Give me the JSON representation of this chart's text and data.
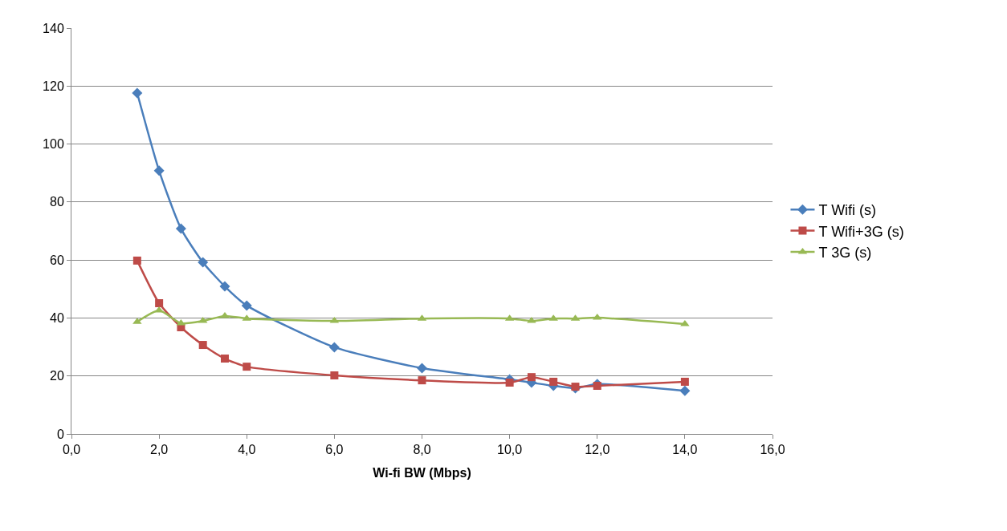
{
  "chart_data": {
    "type": "line",
    "xlabel": "Wi-fi BW (Mbps)",
    "x": [
      1.5,
      2,
      2.5,
      3,
      3.5,
      4,
      6,
      8,
      10,
      10.5,
      11,
      11.5,
      12,
      14
    ],
    "series": [
      {
        "name": "T Wifi (s)",
        "color": "#4a7ebb",
        "marker": "diamond",
        "values": [
          117.6,
          90.8,
          70.8,
          59.2,
          50.9,
          44.3,
          29.9,
          22.7,
          18.8,
          17.7,
          16.6,
          15.8,
          17.2,
          14.9
        ]
      },
      {
        "name": "T Wifi+3G (s)",
        "color": "#be4b48",
        "marker": "square",
        "values": [
          59.8,
          45.1,
          36.8,
          30.7,
          26.0,
          23.2,
          20.2,
          18.5,
          17.7,
          19.6,
          18.0,
          16.3,
          16.6,
          18.0
        ]
      },
      {
        "name": "T 3G (s)",
        "color": "#98b954",
        "marker": "triangle",
        "values": [
          38.7,
          42.6,
          38.2,
          39.0,
          40.7,
          39.8,
          39.0,
          39.8,
          39.8,
          39.0,
          39.8,
          39.8,
          40.1,
          37.9
        ]
      }
    ],
    "xlim": [
      0,
      16
    ],
    "xticks": [
      {
        "value": 0,
        "label": "0,0"
      },
      {
        "value": 2,
        "label": "2,0"
      },
      {
        "value": 4,
        "label": "4,0"
      },
      {
        "value": 6,
        "label": "6,0"
      },
      {
        "value": 8,
        "label": "8,0"
      },
      {
        "value": 10,
        "label": "10,0"
      },
      {
        "value": 12,
        "label": "12,0"
      },
      {
        "value": 14,
        "label": "14,0"
      },
      {
        "value": 16,
        "label": "16,0"
      }
    ],
    "ylim": [
      0,
      140
    ],
    "yticks": [
      0,
      20,
      40,
      60,
      80,
      100,
      120,
      140
    ],
    "grid": "y",
    "legend": "right",
    "line_style": "solid"
  }
}
